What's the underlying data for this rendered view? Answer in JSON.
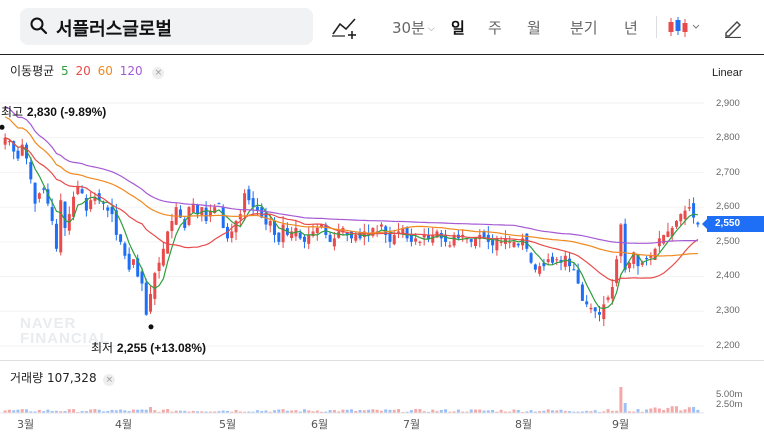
{
  "header": {
    "stock_name": "서플러스글로벌",
    "interval_label": "30분",
    "periods": [
      "일",
      "주",
      "월",
      "분기",
      "년"
    ],
    "active_period": "일"
  },
  "legend": {
    "title": "이동평균",
    "ma": [
      {
        "label": "5",
        "color": "#2e9e3e"
      },
      {
        "label": "20",
        "color": "#e84b4b"
      },
      {
        "label": "60",
        "color": "#f08a1e"
      },
      {
        "label": "120",
        "color": "#a55ad3"
      }
    ],
    "close_symbol": "×"
  },
  "scale_mode": "Linear",
  "colors": {
    "up": "#e84b4b",
    "down": "#1e6ff5",
    "accent": "#1e6ff5"
  },
  "price_axis_labels": [
    "2,900",
    "2,800",
    "2,700",
    "2,600",
    "2,550",
    "2,500",
    "2,400",
    "2,300",
    "2,200"
  ],
  "current_price": "2,550",
  "high_annotation": {
    "prefix": "최고",
    "value": "2,830 (-9.89%)"
  },
  "low_annotation": {
    "prefix": "최저",
    "value": "2,255 (+13.08%)"
  },
  "watermark": [
    "NAVER",
    "FINANCIAL"
  ],
  "volume": {
    "label": "거래량",
    "value": "107,328",
    "axis_labels": [
      "5.00m",
      "2.50m"
    ]
  },
  "x_labels": [
    "3월",
    "4월",
    "5월",
    "6월",
    "7월",
    "8월",
    "9월"
  ],
  "chart_data": {
    "type": "candlestick",
    "ylim": [
      2200,
      2930
    ],
    "series": [
      {
        "name": "MA5",
        "color": "#2e9e3e"
      },
      {
        "name": "MA20",
        "color": "#e84b4b"
      },
      {
        "name": "MA60",
        "color": "#f08a1e"
      },
      {
        "name": "MA120",
        "color": "#a55ad3"
      }
    ],
    "closes": [
      2800,
      2790,
      2760,
      2740,
      2780,
      2740,
      2680,
      2610,
      2640,
      2650,
      2610,
      2560,
      2480,
      2620,
      2540,
      2580,
      2630,
      2660,
      2640,
      2590,
      2620,
      2630,
      2620,
      2610,
      2590,
      2580,
      2520,
      2500,
      2460,
      2420,
      2450,
      2400,
      2380,
      2290,
      2350,
      2410,
      2440,
      2480,
      2530,
      2560,
      2600,
      2570,
      2540,
      2600,
      2610,
      2580,
      2600,
      2560,
      2590,
      2600,
      2610,
      2540,
      2510,
      2530,
      2560,
      2580,
      2640,
      2620,
      2600,
      2590,
      2570,
      2550,
      2560,
      2520,
      2500,
      2550,
      2520,
      2530,
      2540,
      2510,
      2500,
      2520,
      2530,
      2540,
      2550,
      2520,
      2500,
      2510,
      2530,
      2540,
      2520,
      2510,
      2520,
      2510,
      2530,
      2520,
      2540,
      2530,
      2550,
      2520,
      2500,
      2520,
      2530,
      2540,
      2510,
      2500,
      2510,
      2500,
      2520,
      2510,
      2520,
      2530,
      2510,
      2500,
      2490,
      2520,
      2510,
      2520,
      2510,
      2500,
      2510,
      2520,
      2510,
      2500,
      2490,
      2510,
      2500,
      2510,
      2500,
      2500,
      2490,
      2510,
      2480,
      2440,
      2420,
      2430,
      2430,
      2450,
      2440,
      2450,
      2440,
      2460,
      2430,
      2420,
      2380,
      2330,
      2320,
      2310,
      2300,
      2290,
      2320,
      2340,
      2370,
      2450,
      2550,
      2420,
      2440,
      2470,
      2430,
      2440,
      2450,
      2460,
      2480,
      2510,
      2520,
      2530,
      2540,
      2560,
      2580,
      2590,
      2600,
      2570,
      2550
    ],
    "high": {
      "value": 2830,
      "change": "-9.89%"
    },
    "low": {
      "value": 2255,
      "change": "+13.08%"
    },
    "volume_spikes": [
      {
        "label": "4월",
        "size": "small"
      },
      {
        "label": "9월",
        "size": "large"
      }
    ]
  }
}
